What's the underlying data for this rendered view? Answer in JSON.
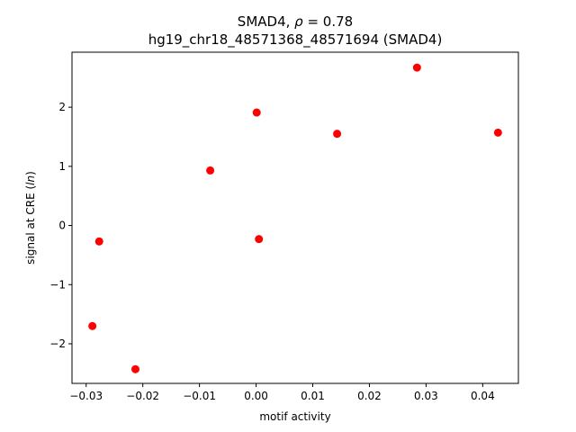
{
  "chart_data": {
    "type": "scatter",
    "title_line1": "SMAD4, ρ = 0.78",
    "title_line2": "hg19_chr18_48571368_48571694 (SMAD4)",
    "xlabel": "motif activity",
    "ylabel": "signal at CRE (ln)",
    "xlim": [
      -0.0325,
      0.0463
    ],
    "ylim": [
      -2.67,
      2.93
    ],
    "xticks": [
      -0.03,
      -0.02,
      -0.01,
      0.0,
      0.01,
      0.02,
      0.03,
      0.04
    ],
    "xtick_labels": [
      "−0.03",
      "−0.02",
      "−0.01",
      "0.00",
      "0.01",
      "0.02",
      "0.03",
      "0.04"
    ],
    "yticks": [
      -2,
      -1,
      0,
      1,
      2
    ],
    "ytick_labels": [
      "−2",
      "−1",
      "0",
      "1",
      "2"
    ],
    "grid": false,
    "marker_color": "#ff0000",
    "points": [
      {
        "x": -0.0289,
        "y": -1.7
      },
      {
        "x": -0.0277,
        "y": -0.27
      },
      {
        "x": -0.0213,
        "y": -2.43
      },
      {
        "x": -0.0081,
        "y": 0.93
      },
      {
        "x": 0.0001,
        "y": 1.91
      },
      {
        "x": 0.0005,
        "y": -0.23
      },
      {
        "x": 0.0143,
        "y": 1.55
      },
      {
        "x": 0.0284,
        "y": 2.67
      },
      {
        "x": 0.0427,
        "y": 1.57
      }
    ]
  }
}
